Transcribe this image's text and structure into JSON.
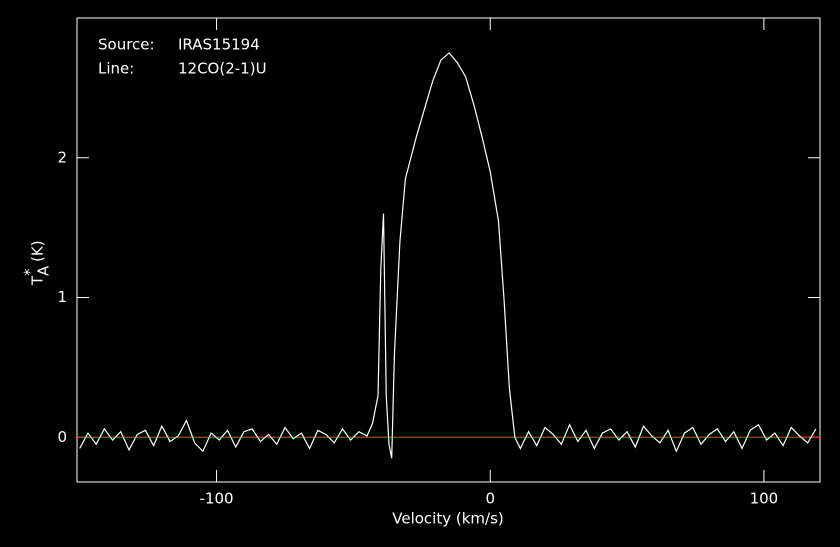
{
  "chart_data": {
    "type": "line",
    "xlabel": "Velocity (km/s)",
    "ylabel": {
      "main": "T",
      "sup": "*",
      "sub": "A",
      "unit": "(K)"
    },
    "annotations": [
      {
        "key": "Source:",
        "value": "IRAS15194"
      },
      {
        "key": "Line:",
        "value": "12CO(2-1)U"
      }
    ],
    "xlim": [
      -151,
      120.5
    ],
    "ylim": [
      -0.32,
      3.0
    ],
    "xticks": [
      -100,
      0,
      100
    ],
    "yticks": [
      0,
      1,
      2
    ],
    "baseline": {
      "value": 0,
      "color": "#ff2020"
    },
    "series": [
      {
        "color": "#ffffff",
        "x": [
          -150,
          -147,
          -144,
          -141,
          -138,
          -135,
          -132,
          -129,
          -126,
          -123,
          -120,
          -117,
          -114,
          -111,
          -108,
          -105,
          -102,
          -99,
          -96,
          -93,
          -90,
          -87,
          -84,
          -81,
          -78,
          -75,
          -72,
          -69,
          -66,
          -63,
          -60,
          -57,
          -54,
          -51,
          -48,
          -45,
          -43,
          -41,
          -40,
          -39,
          -38,
          -37,
          -36,
          -35,
          -33,
          -31,
          -29,
          -27,
          -24,
          -21,
          -18,
          -15,
          -12,
          -9,
          -6,
          -3,
          0,
          3,
          5,
          7,
          9,
          11,
          14,
          17,
          20,
          23,
          26,
          29,
          32,
          35,
          38,
          41,
          44,
          47,
          50,
          53,
          56,
          59,
          62,
          65,
          68,
          71,
          74,
          77,
          80,
          83,
          86,
          89,
          92,
          95,
          98,
          101,
          104,
          107,
          110,
          113,
          116,
          119
        ],
        "values": [
          -0.08,
          0.03,
          -0.05,
          0.06,
          -0.02,
          0.04,
          -0.09,
          0.02,
          0.05,
          -0.06,
          0.08,
          -0.03,
          0.01,
          0.12,
          -0.04,
          -0.1,
          0.03,
          -0.02,
          0.05,
          -0.07,
          0.04,
          0.06,
          -0.03,
          0.02,
          -0.05,
          0.07,
          -0.01,
          0.03,
          -0.08,
          0.05,
          0.02,
          -0.04,
          0.06,
          -0.02,
          0.04,
          0.01,
          0.1,
          0.3,
          1.2,
          1.6,
          0.3,
          -0.05,
          -0.15,
          0.6,
          1.4,
          1.85,
          2.0,
          2.15,
          2.35,
          2.55,
          2.7,
          2.75,
          2.68,
          2.58,
          2.38,
          2.15,
          1.9,
          1.55,
          1.0,
          0.35,
          0.0,
          -0.08,
          0.04,
          -0.06,
          0.07,
          0.02,
          -0.05,
          0.09,
          -0.03,
          0.05,
          -0.08,
          0.03,
          0.06,
          -0.02,
          0.04,
          -0.07,
          0.08,
          0.01,
          -0.04,
          0.05,
          -0.1,
          0.03,
          0.07,
          -0.05,
          0.02,
          0.06,
          -0.03,
          0.04,
          -0.08,
          0.05,
          0.09,
          -0.02,
          0.03,
          -0.06,
          0.07,
          0.01,
          -0.04,
          0.06
        ]
      }
    ]
  }
}
